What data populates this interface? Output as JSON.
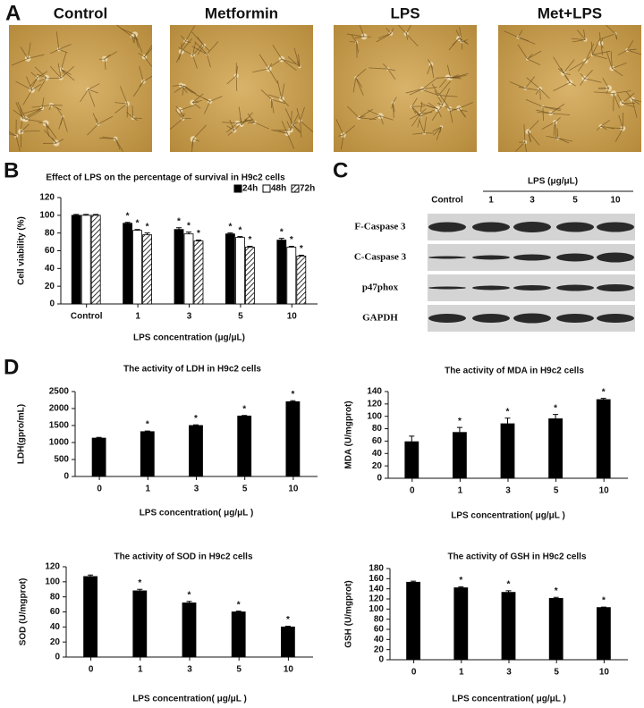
{
  "panel_labels": [
    "A",
    "B",
    "C",
    "D"
  ],
  "micrographs": [
    "Control",
    "Metformin",
    "LPS",
    "Met+LPS"
  ],
  "blot": {
    "header": "LPS (μg/μL)",
    "lanes": [
      "Control",
      "1",
      "3",
      "5",
      "10"
    ],
    "proteins": [
      "F-Caspase 3",
      "C-Caspase 3",
      "p47phox",
      "GAPDH"
    ]
  },
  "chart_data": [
    {
      "type": "bar",
      "title": "Effect of LPS on the percentage of survival in H9c2 cells",
      "x_label": "LPS concentration (μg/μL)",
      "y_label": "Cell viability (%)",
      "categories": [
        "Control",
        "1",
        "3",
        "5",
        "10"
      ],
      "series": [
        {
          "name": "24h",
          "color": "#000000",
          "values": [
            100,
            91,
            84,
            79,
            72
          ],
          "errors": [
            1,
            1,
            2,
            1,
            2
          ],
          "significance": [
            null,
            "*",
            "*",
            "*",
            "*"
          ]
        },
        {
          "name": "48h",
          "color": "#ffffff",
          "values": [
            100,
            83,
            79,
            75,
            64
          ],
          "errors": [
            1,
            1,
            2,
            1,
            1
          ],
          "significance": [
            null,
            "*",
            "*",
            "*",
            "*"
          ]
        },
        {
          "name": "72h",
          "color": "#ffffff",
          "hatch": true,
          "values": [
            100,
            78,
            71,
            64,
            54
          ],
          "errors": [
            1,
            2,
            1,
            1,
            1
          ],
          "significance": [
            null,
            "*",
            "*",
            "*",
            "*"
          ]
        }
      ],
      "ylim": [
        0,
        120
      ],
      "yticks": [
        0,
        20,
        40,
        60,
        80,
        100,
        120
      ],
      "legend": "top-right"
    },
    {
      "type": "bar",
      "title": "The activity of LDH in H9c2 cells",
      "x_label": "LPS concentration( μg/μL )",
      "y_label": "LDH(gpro/mL)",
      "categories": [
        "0",
        "1",
        "3",
        "5",
        "10"
      ],
      "color": "#000000",
      "values": [
        1130,
        1320,
        1500,
        1780,
        2200
      ],
      "errors": [
        20,
        20,
        20,
        15,
        30
      ],
      "significance": [
        null,
        "*",
        "*",
        "*",
        "*"
      ],
      "ylim": [
        0,
        2500
      ],
      "yticks": [
        0,
        500,
        1000,
        1500,
        2000,
        2500
      ]
    },
    {
      "type": "bar",
      "title": "The activity of MDA in H9c2 cells",
      "x_label": "LPS concentration( μg/μL )",
      "y_label": "MDA (U/mgprot)",
      "categories": [
        "0",
        "1",
        "3",
        "5",
        "10"
      ],
      "color": "#000000",
      "values": [
        59,
        74,
        88,
        96,
        127
      ],
      "errors": [
        9,
        8,
        9,
        7,
        2
      ],
      "significance": [
        null,
        "*",
        "*",
        "*",
        "*"
      ],
      "ylim": [
        0,
        140
      ],
      "yticks": [
        0,
        20,
        40,
        60,
        80,
        100,
        120,
        140
      ]
    },
    {
      "type": "bar",
      "title": "The activity of SOD in H9c2 cells",
      "x_label": "LPS concentration( μg/μL )",
      "y_label": "SOD (U/mgprot)",
      "categories": [
        "0",
        "1",
        "3",
        "5",
        "10"
      ],
      "color": "#000000",
      "values": [
        107,
        88,
        72,
        60,
        40
      ],
      "errors": [
        2,
        2,
        2,
        1,
        1
      ],
      "significance": [
        null,
        "*",
        "*",
        "*",
        "*"
      ],
      "ylim": [
        0,
        120
      ],
      "yticks": [
        0,
        20,
        40,
        60,
        80,
        100,
        120
      ]
    },
    {
      "type": "bar",
      "title": "The activity of GSH in H9c2 cells",
      "x_label": "LPS concentration( μg/μL )",
      "y_label": "GSH (U/mgprot)",
      "categories": [
        "0",
        "1",
        "3",
        "5",
        "10"
      ],
      "color": "#000000",
      "values": [
        153,
        142,
        133,
        121,
        103
      ],
      "errors": [
        2,
        2,
        3,
        2,
        1
      ],
      "significance": [
        null,
        "*",
        "*",
        "*",
        "*"
      ],
      "ylim": [
        0,
        180
      ],
      "yticks": [
        0,
        20,
        40,
        60,
        80,
        100,
        120,
        140,
        160,
        180
      ]
    }
  ]
}
